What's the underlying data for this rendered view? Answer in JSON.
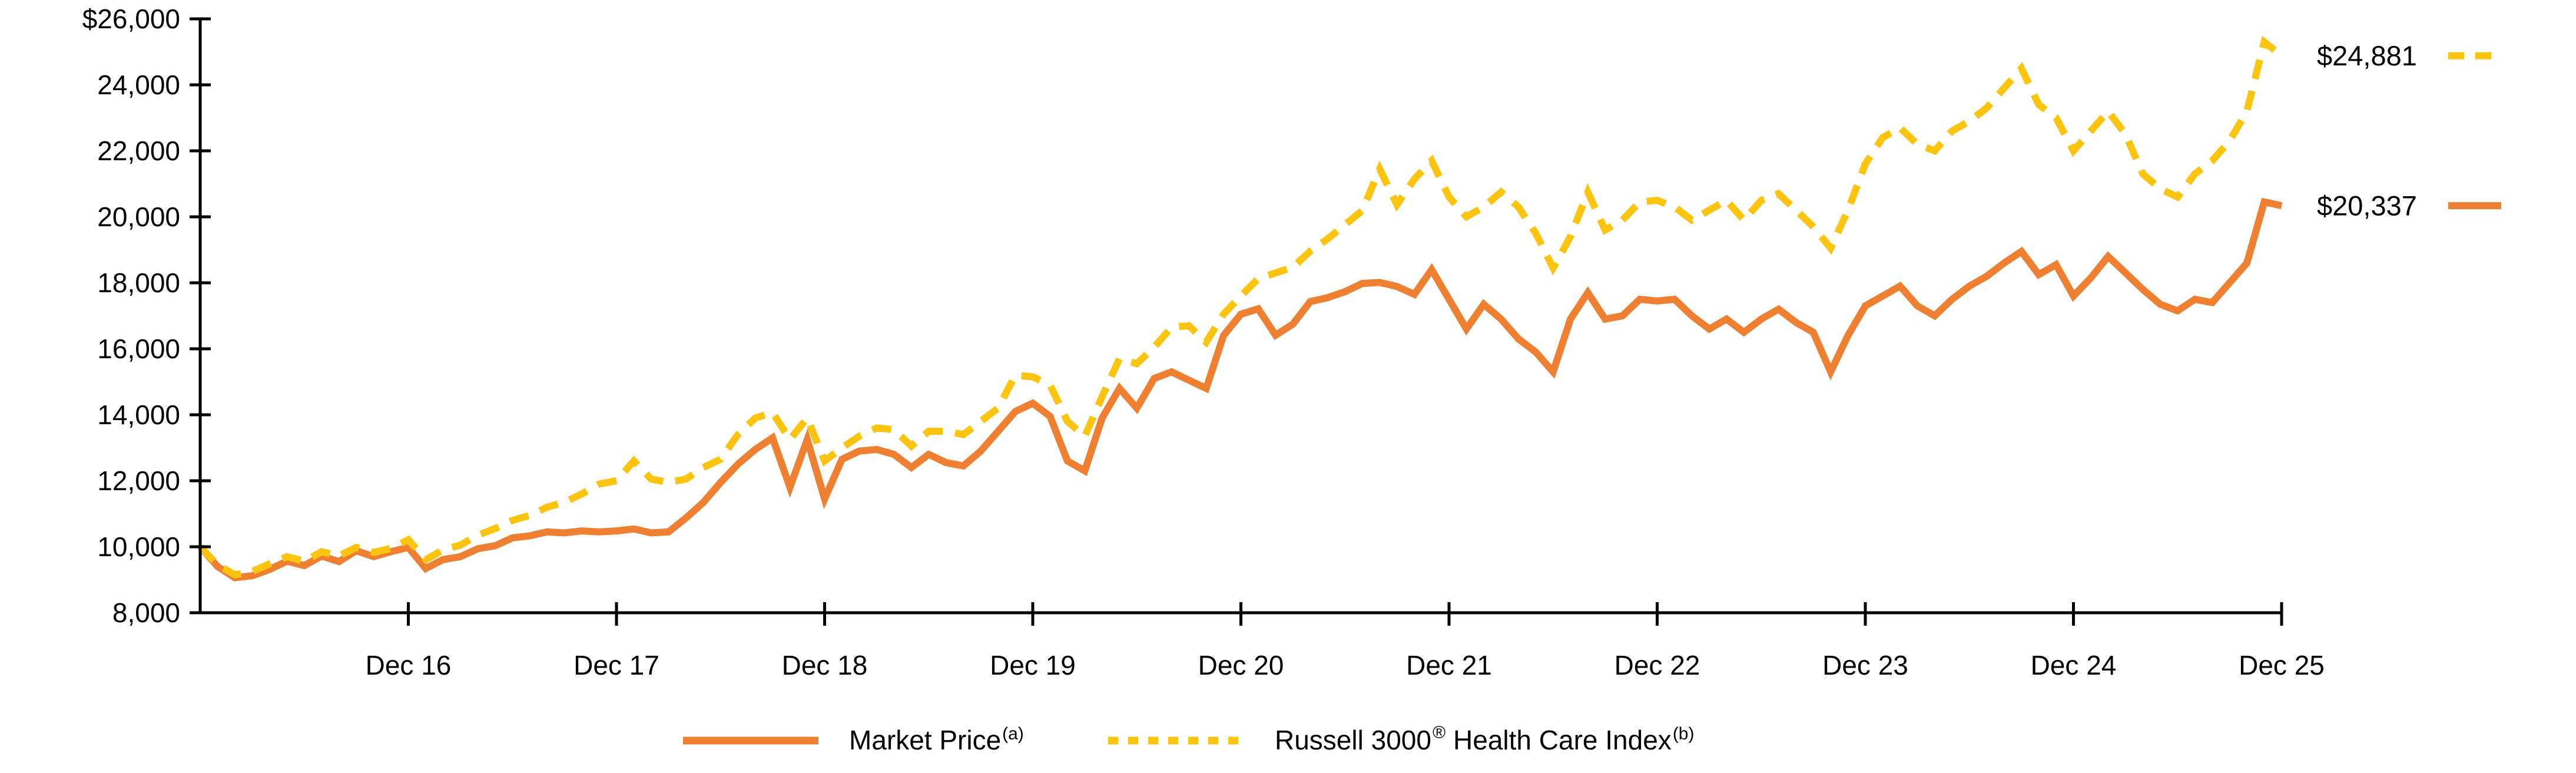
{
  "chart_data": {
    "type": "line",
    "title": "",
    "xlabel": "",
    "ylabel": "",
    "grid": false,
    "legend_position": "bottom-center",
    "ylim": [
      8000,
      26000
    ],
    "x_start": "Dec 15",
    "x_frequency": "monthly",
    "y_ticks": {
      "values": [
        26000,
        24000,
        22000,
        20000,
        18000,
        16000,
        14000,
        12000,
        10000,
        8000
      ],
      "labels": [
        "$26,000",
        "24,000",
        "22,000",
        "20,000",
        "18,000",
        "16,000",
        "14,000",
        "12,000",
        "10,000",
        "8,000"
      ]
    },
    "x_ticks": {
      "month_indices": [
        12,
        24,
        36,
        48,
        60,
        72,
        84,
        96,
        108,
        120
      ],
      "labels": [
        "Dec 16",
        "Dec 17",
        "Dec 18",
        "Dec 19",
        "Dec 20",
        "Dec 21",
        "Dec 22",
        "Dec 23",
        "Dec 24",
        "Dec 25"
      ]
    },
    "series": [
      {
        "name": "Market Price",
        "superscript": "(a)",
        "style": "solid",
        "color": "#EF7F31",
        "end_label": "$20,337",
        "end_value": 20337,
        "values": [
          10000,
          9400,
          9060,
          9120,
          9310,
          9560,
          9430,
          9720,
          9550,
          9880,
          9700,
          9850,
          9980,
          9340,
          9610,
          9700,
          9940,
          10030,
          10270,
          10330,
          10450,
          10420,
          10480,
          10450,
          10480,
          10540,
          10420,
          10450,
          10870,
          11340,
          11950,
          12500,
          12950,
          13300,
          11800,
          13250,
          11450,
          12650,
          12900,
          12950,
          12800,
          12400,
          12800,
          12550,
          12450,
          12900,
          13500,
          14100,
          14350,
          13950,
          12600,
          12300,
          13900,
          14800,
          14200,
          15100,
          15300,
          15050,
          14800,
          16400,
          17050,
          17210,
          16410,
          16750,
          17430,
          17550,
          17730,
          17980,
          18010,
          17890,
          17650,
          18400,
          17500,
          16600,
          17350,
          16900,
          16300,
          15900,
          15300,
          16900,
          17700,
          16900,
          17000,
          17500,
          17450,
          17500,
          17000,
          16600,
          16900,
          16500,
          16900,
          17200,
          16800,
          16500,
          15300,
          16400,
          17300,
          17600,
          17900,
          17300,
          17000,
          17500,
          17900,
          18200,
          18600,
          18950,
          18250,
          18550,
          17600,
          18150,
          18800,
          18300,
          17800,
          17350,
          17150,
          17500,
          17400,
          18000,
          18600,
          20450,
          20337
        ]
      },
      {
        "name": "Russell 3000 Health Care Index",
        "superscript": "(b)",
        "registered_mark": "®",
        "style": "dashed",
        "color": "#FCC40F",
        "end_label": "$24,881",
        "end_value": 24881,
        "values": [
          10000,
          9450,
          9150,
          9250,
          9480,
          9700,
          9560,
          9850,
          9720,
          9980,
          9830,
          9950,
          10210,
          9610,
          9900,
          10050,
          10350,
          10550,
          10800,
          10950,
          11200,
          11350,
          11600,
          11900,
          12000,
          12600,
          12050,
          11950,
          12050,
          12400,
          12650,
          13400,
          13900,
          14070,
          13250,
          13900,
          12600,
          13000,
          13350,
          13600,
          13550,
          13050,
          13500,
          13500,
          13400,
          13800,
          14200,
          15200,
          15150,
          14900,
          13800,
          13350,
          14550,
          15700,
          15550,
          16050,
          16650,
          16700,
          16200,
          17050,
          17600,
          18130,
          18300,
          18470,
          18960,
          19330,
          19760,
          20190,
          21450,
          20370,
          21140,
          21700,
          20600,
          20000,
          20300,
          20750,
          20300,
          19500,
          18450,
          19400,
          20750,
          19600,
          19900,
          20450,
          20500,
          20300,
          19900,
          20200,
          20500,
          19900,
          20500,
          20700,
          20200,
          19700,
          19050,
          20200,
          21600,
          22400,
          22700,
          22200,
          22000,
          22600,
          22900,
          23300,
          23900,
          24500,
          23400,
          23000,
          22000,
          22600,
          23200,
          22500,
          21300,
          20850,
          20600,
          21300,
          21700,
          22300,
          23200,
          25300,
          24881
        ]
      }
    ]
  },
  "end_labels": {
    "index": "$24,881",
    "market": "$20,337"
  },
  "legend": {
    "market_label": "Market Price",
    "market_sup": "(a)",
    "index_part1": "Russell 3000",
    "index_sup1": "®",
    "index_part2": "Health Care Index",
    "index_sup2": "(b)"
  },
  "axis_color": "#000000"
}
